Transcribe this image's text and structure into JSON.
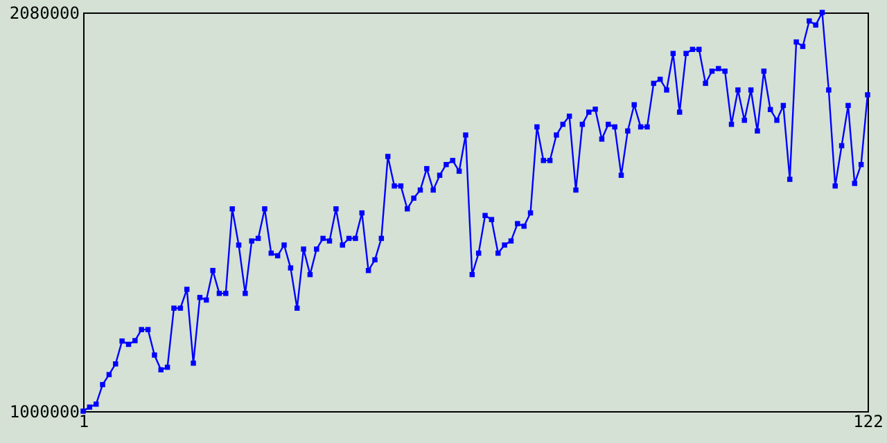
{
  "chart_data": {
    "type": "line",
    "x": [
      1,
      2,
      3,
      4,
      5,
      6,
      7,
      8,
      9,
      10,
      11,
      12,
      13,
      14,
      15,
      16,
      17,
      18,
      19,
      20,
      21,
      22,
      23,
      24,
      25,
      26,
      27,
      28,
      29,
      30,
      31,
      32,
      33,
      34,
      35,
      36,
      37,
      38,
      39,
      40,
      41,
      42,
      43,
      44,
      45,
      46,
      47,
      48,
      49,
      50,
      51,
      52,
      53,
      54,
      55,
      56,
      57,
      58,
      59,
      60,
      61,
      62,
      63,
      64,
      65,
      66,
      67,
      68,
      69,
      70,
      71,
      72,
      73,
      74,
      75,
      76,
      77,
      78,
      79,
      80,
      81,
      82,
      83,
      84,
      85,
      86,
      87,
      88,
      89,
      90,
      91,
      92,
      93,
      94,
      95,
      96,
      97,
      98,
      99,
      100,
      101,
      102,
      103,
      104,
      105,
      106,
      107,
      108,
      109,
      110,
      111,
      112,
      113,
      114,
      115,
      116,
      117,
      118,
      119,
      120,
      121,
      122
    ],
    "series": [
      {
        "color": "#0000ff",
        "values": [
          1000000,
          1011000,
          1019000,
          1072000,
          1099000,
          1128000,
          1190000,
          1181000,
          1191000,
          1221000,
          1221000,
          1152000,
          1112000,
          1119000,
          1279000,
          1279000,
          1330000,
          1130000,
          1308000,
          1301000,
          1381000,
          1319000,
          1319000,
          1548000,
          1450000,
          1319000,
          1461000,
          1468000,
          1548000,
          1428000,
          1421000,
          1450000,
          1388000,
          1279000,
          1439000,
          1370000,
          1439000,
          1468000,
          1461000,
          1548000,
          1450000,
          1468000,
          1468000,
          1537000,
          1381000,
          1410000,
          1468000,
          1690000,
          1610000,
          1610000,
          1548000,
          1577000,
          1599000,
          1657000,
          1599000,
          1639000,
          1668000,
          1679000,
          1650000,
          1748000,
          1370000,
          1428000,
          1530000,
          1519000,
          1428000,
          1450000,
          1461000,
          1508000,
          1501000,
          1537000,
          1770000,
          1679000,
          1679000,
          1748000,
          1777000,
          1799000,
          1599000,
          1777000,
          1810000,
          1818000,
          1737000,
          1777000,
          1770000,
          1639000,
          1759000,
          1830000,
          1770000,
          1770000,
          1888000,
          1899000,
          1870000,
          1969000,
          1810000,
          1969000,
          1980000,
          1980000,
          1888000,
          1921000,
          1928000,
          1921000,
          1777000,
          1870000,
          1788000,
          1870000,
          1759000,
          1921000,
          1817000,
          1788000,
          1828000,
          1628000,
          2000000,
          1988000,
          2057000,
          2046000,
          2080000,
          1870000,
          1610000,
          1719000,
          1828000,
          1617000,
          1668000,
          1857000
        ]
      }
    ],
    "xlim": [
      1,
      122
    ],
    "xticks": [
      1,
      122
    ],
    "ylim": [
      1000000,
      2080000
    ],
    "yticks": [
      1000000,
      2080000
    ],
    "marker": "square",
    "line_style": "solid",
    "grid": false
  }
}
